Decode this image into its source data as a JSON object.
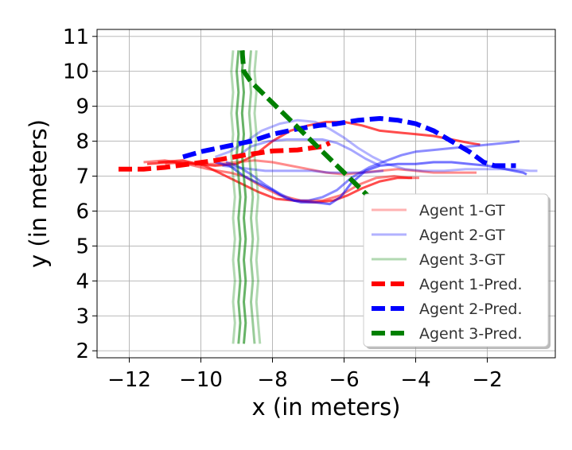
{
  "chart_data": {
    "type": "line",
    "title": "",
    "xlabel": "x (in meters)",
    "ylabel": "y (in meters)",
    "xlim": [
      -12.9,
      -0.1
    ],
    "ylim": [
      1.8,
      11.2
    ],
    "xticks": [
      -12,
      -10,
      -8,
      -6,
      -4,
      -2
    ],
    "xtick_labels": [
      "−12",
      "−10",
      "−8",
      "−6",
      "−4",
      "−2"
    ],
    "yticks": [
      2,
      3,
      4,
      5,
      6,
      7,
      8,
      9,
      10,
      11
    ],
    "ytick_labels": [
      "2",
      "3",
      "4",
      "5",
      "6",
      "7",
      "8",
      "9",
      "10",
      "11"
    ],
    "grid": true,
    "legend_position": "lower-right",
    "colors": {
      "agent1": "#ff0000",
      "agent2": "#0000ff",
      "agent3": "#008000"
    },
    "legend": [
      {
        "label": "Agent 1-GT",
        "color": "#ff0000",
        "style": "solid",
        "opacity": 0.3
      },
      {
        "label": "Agent 2-GT",
        "color": "#0000ff",
        "style": "solid",
        "opacity": 0.3
      },
      {
        "label": "Agent 3-GT",
        "color": "#008000",
        "style": "solid",
        "opacity": 0.3
      },
      {
        "label": "Agent 1-Pred.",
        "color": "#ff0000",
        "style": "dashed",
        "opacity": 1
      },
      {
        "label": "Agent 2-Pred.",
        "color": "#0000ff",
        "style": "dashed",
        "opacity": 1
      },
      {
        "label": "Agent 3-Pred.",
        "color": "#008000",
        "style": "dashed",
        "opacity": 1
      }
    ],
    "series": [
      {
        "group": "agent1",
        "kind": "gt",
        "opacity": 0.5,
        "points": [
          [
            -11.6,
            7.4
          ],
          [
            -11.0,
            7.45
          ],
          [
            -10.4,
            7.35
          ],
          [
            -9.8,
            7.2
          ],
          [
            -9.2,
            7.1
          ],
          [
            -8.8,
            7.0
          ],
          [
            -8.3,
            6.7
          ],
          [
            -7.8,
            6.45
          ],
          [
            -7.2,
            6.3
          ],
          [
            -6.6,
            6.3
          ],
          [
            -6.1,
            6.45
          ],
          [
            -5.6,
            6.75
          ],
          [
            -5.1,
            6.95
          ],
          [
            -4.6,
            7.0
          ],
          [
            -4.2,
            6.95
          ],
          [
            -3.9,
            6.95
          ]
        ]
      },
      {
        "group": "agent1",
        "kind": "gt",
        "opacity": 0.7,
        "points": [
          [
            -11.2,
            7.4
          ],
          [
            -10.5,
            7.45
          ],
          [
            -9.9,
            7.3
          ],
          [
            -9.4,
            7.05
          ],
          [
            -8.9,
            6.8
          ],
          [
            -8.4,
            6.55
          ],
          [
            -7.9,
            6.35
          ],
          [
            -7.4,
            6.3
          ],
          [
            -6.8,
            6.25
          ],
          [
            -6.3,
            6.3
          ],
          [
            -5.9,
            6.45
          ],
          [
            -5.5,
            6.65
          ],
          [
            -5.0,
            6.85
          ],
          [
            -4.5,
            6.95
          ],
          [
            -4.1,
            6.95
          ]
        ]
      },
      {
        "group": "agent1",
        "kind": "gt",
        "opacity": 0.7,
        "points": [
          [
            -11.5,
            7.35
          ],
          [
            -10.8,
            7.4
          ],
          [
            -10.2,
            7.35
          ],
          [
            -9.6,
            7.3
          ],
          [
            -9.0,
            7.35
          ],
          [
            -8.5,
            7.6
          ],
          [
            -8.0,
            8.0
          ],
          [
            -7.5,
            8.3
          ],
          [
            -7.0,
            8.45
          ],
          [
            -6.5,
            8.55
          ],
          [
            -6.0,
            8.55
          ],
          [
            -5.5,
            8.45
          ],
          [
            -5.0,
            8.3
          ],
          [
            -4.5,
            8.25
          ],
          [
            -4.0,
            8.2
          ],
          [
            -3.5,
            8.15
          ],
          [
            -3.0,
            8.05
          ],
          [
            -2.5,
            7.95
          ],
          [
            -2.2,
            7.9
          ]
        ]
      },
      {
        "group": "agent1",
        "kind": "gt",
        "opacity": 0.45,
        "points": [
          [
            -11.0,
            7.35
          ],
          [
            -10.5,
            7.4
          ],
          [
            -10.0,
            7.35
          ],
          [
            -9.5,
            7.35
          ],
          [
            -9.0,
            7.4
          ],
          [
            -8.5,
            7.45
          ],
          [
            -8.0,
            7.4
          ],
          [
            -7.5,
            7.3
          ],
          [
            -7.0,
            7.2
          ],
          [
            -6.5,
            7.1
          ],
          [
            -6.0,
            7.05
          ],
          [
            -5.5,
            7.1
          ],
          [
            -5.0,
            7.15
          ],
          [
            -4.5,
            7.2
          ],
          [
            -4.0,
            7.15
          ],
          [
            -3.5,
            7.1
          ],
          [
            -3.0,
            7.1
          ],
          [
            -2.5,
            7.1
          ],
          [
            -2.3,
            7.1
          ]
        ]
      },
      {
        "group": "agent1",
        "kind": "pred",
        "points": [
          [
            -12.3,
            7.2
          ],
          [
            -11.6,
            7.2
          ],
          [
            -11.0,
            7.25
          ],
          [
            -10.3,
            7.35
          ],
          [
            -9.6,
            7.45
          ],
          [
            -8.8,
            7.6
          ],
          [
            -8.0,
            7.72
          ],
          [
            -7.3,
            7.75
          ],
          [
            -6.6,
            7.85
          ],
          [
            -6.4,
            7.95
          ]
        ]
      },
      {
        "group": "agent2",
        "kind": "gt",
        "opacity": 0.55,
        "points": [
          [
            -9.6,
            7.4
          ],
          [
            -9.2,
            7.3
          ],
          [
            -8.8,
            7.0
          ],
          [
            -8.4,
            6.8
          ],
          [
            -8.0,
            6.6
          ],
          [
            -7.6,
            6.35
          ],
          [
            -7.2,
            6.25
          ],
          [
            -6.8,
            6.25
          ],
          [
            -6.4,
            6.2
          ],
          [
            -6.1,
            6.4
          ],
          [
            -5.8,
            6.8
          ],
          [
            -5.4,
            7.15
          ],
          [
            -5.0,
            7.3
          ],
          [
            -4.5,
            7.35
          ],
          [
            -4.0,
            7.35
          ],
          [
            -3.5,
            7.4
          ],
          [
            -3.0,
            7.4
          ],
          [
            -2.5,
            7.35
          ],
          [
            -2.0,
            7.3
          ],
          [
            -1.5,
            7.2
          ],
          [
            -1.0,
            7.1
          ],
          [
            -0.9,
            7.05
          ]
        ]
      },
      {
        "group": "agent2",
        "kind": "gt",
        "opacity": 0.3,
        "points": [
          [
            -9.6,
            7.55
          ],
          [
            -9.2,
            7.7
          ],
          [
            -8.8,
            7.95
          ],
          [
            -8.3,
            8.3
          ],
          [
            -7.8,
            8.5
          ],
          [
            -7.3,
            8.6
          ],
          [
            -6.8,
            8.55
          ],
          [
            -6.4,
            8.35
          ],
          [
            -6.0,
            8.1
          ],
          [
            -5.6,
            7.8
          ],
          [
            -5.2,
            7.55
          ],
          [
            -4.8,
            7.35
          ],
          [
            -4.3,
            7.2
          ],
          [
            -3.8,
            7.15
          ],
          [
            -3.2,
            7.15
          ],
          [
            -2.6,
            7.2
          ],
          [
            -2.0,
            7.2
          ],
          [
            -1.4,
            7.2
          ],
          [
            -0.8,
            7.15
          ],
          [
            -0.6,
            7.15
          ]
        ]
      },
      {
        "group": "agent2",
        "kind": "gt",
        "opacity": 0.35,
        "points": [
          [
            -9.4,
            7.3
          ],
          [
            -9.0,
            7.25
          ],
          [
            -8.6,
            7.2
          ],
          [
            -8.2,
            7.15
          ],
          [
            -7.8,
            7.15
          ],
          [
            -7.4,
            7.15
          ],
          [
            -6.9,
            7.15
          ],
          [
            -6.4,
            7.1
          ],
          [
            -5.9,
            7.1
          ],
          [
            -5.4,
            7.1
          ],
          [
            -4.9,
            7.15
          ]
        ]
      },
      {
        "group": "agent2",
        "kind": "gt",
        "opacity": 0.45,
        "points": [
          [
            -9.3,
            7.4
          ],
          [
            -9.0,
            7.3
          ],
          [
            -8.6,
            7.05
          ],
          [
            -8.2,
            6.75
          ],
          [
            -7.8,
            6.5
          ],
          [
            -7.4,
            6.3
          ],
          [
            -7.0,
            6.3
          ],
          [
            -6.6,
            6.4
          ],
          [
            -6.2,
            6.6
          ],
          [
            -5.8,
            6.95
          ],
          [
            -5.3,
            7.25
          ],
          [
            -4.8,
            7.45
          ],
          [
            -4.4,
            7.6
          ],
          [
            -4.0,
            7.7
          ],
          [
            -3.5,
            7.75
          ],
          [
            -3.0,
            7.8
          ],
          [
            -2.5,
            7.85
          ],
          [
            -2.0,
            7.9
          ],
          [
            -1.5,
            7.95
          ],
          [
            -1.1,
            8.0
          ]
        ]
      },
      {
        "group": "agent2",
        "kind": "gt",
        "opacity": 0.35,
        "points": [
          [
            -9.0,
            7.55
          ],
          [
            -8.6,
            7.85
          ],
          [
            -8.1,
            8.0
          ],
          [
            -7.6,
            8.05
          ],
          [
            -7.1,
            8.05
          ],
          [
            -6.6,
            8.05
          ],
          [
            -6.2,
            7.95
          ],
          [
            -5.8,
            7.75
          ],
          [
            -5.4,
            7.5
          ],
          [
            -5.0,
            7.3
          ]
        ]
      },
      {
        "group": "agent2",
        "kind": "pred",
        "points": [
          [
            -10.5,
            7.55
          ],
          [
            -10.0,
            7.7
          ],
          [
            -9.3,
            7.85
          ],
          [
            -8.6,
            8.0
          ],
          [
            -8.0,
            8.2
          ],
          [
            -7.3,
            8.35
          ],
          [
            -6.7,
            8.45
          ],
          [
            -6.2,
            8.5
          ],
          [
            -5.6,
            8.6
          ],
          [
            -5.0,
            8.65
          ],
          [
            -4.5,
            8.6
          ],
          [
            -4.0,
            8.5
          ],
          [
            -3.5,
            8.3
          ],
          [
            -3.0,
            8.0
          ],
          [
            -2.5,
            7.7
          ],
          [
            -2.1,
            7.4
          ],
          [
            -1.8,
            7.3
          ],
          [
            -1.2,
            7.3
          ]
        ]
      },
      {
        "group": "agent3",
        "kind": "gt",
        "opacity": 0.3,
        "points": [
          [
            -9.1,
            10.6
          ],
          [
            -9.15,
            10.0
          ],
          [
            -9.1,
            9.4
          ],
          [
            -9.15,
            8.8
          ],
          [
            -9.1,
            8.2
          ],
          [
            -9.15,
            7.6
          ],
          [
            -9.1,
            7.0
          ],
          [
            -9.05,
            6.4
          ],
          [
            -9.1,
            5.8
          ],
          [
            -9.05,
            5.2
          ],
          [
            -9.1,
            4.6
          ],
          [
            -9.05,
            4.0
          ],
          [
            -9.1,
            3.4
          ],
          [
            -9.05,
            2.8
          ],
          [
            -9.1,
            2.2
          ]
        ]
      },
      {
        "group": "agent3",
        "kind": "gt",
        "opacity": 0.55,
        "points": [
          [
            -8.95,
            10.6
          ],
          [
            -9.0,
            10.0
          ],
          [
            -8.95,
            9.4
          ],
          [
            -9.0,
            8.8
          ],
          [
            -8.95,
            8.2
          ],
          [
            -9.0,
            7.6
          ],
          [
            -8.95,
            7.0
          ],
          [
            -8.9,
            6.4
          ],
          [
            -8.95,
            5.8
          ],
          [
            -8.9,
            5.2
          ],
          [
            -8.95,
            4.6
          ],
          [
            -8.9,
            4.0
          ],
          [
            -8.95,
            3.4
          ],
          [
            -8.9,
            2.8
          ],
          [
            -8.95,
            2.2
          ]
        ]
      },
      {
        "group": "agent3",
        "kind": "gt",
        "opacity": 0.6,
        "points": [
          [
            -8.8,
            10.6
          ],
          [
            -8.85,
            10.0
          ],
          [
            -8.8,
            9.4
          ],
          [
            -8.85,
            8.8
          ],
          [
            -8.8,
            8.2
          ],
          [
            -8.85,
            7.6
          ],
          [
            -8.8,
            7.0
          ],
          [
            -8.75,
            6.4
          ],
          [
            -8.8,
            5.8
          ],
          [
            -8.75,
            5.2
          ],
          [
            -8.8,
            4.6
          ],
          [
            -8.75,
            4.0
          ],
          [
            -8.8,
            3.4
          ],
          [
            -8.75,
            2.8
          ],
          [
            -8.8,
            2.2
          ]
        ]
      },
      {
        "group": "agent3",
        "kind": "gt",
        "opacity": 0.4,
        "points": [
          [
            -8.6,
            10.6
          ],
          [
            -8.65,
            10.0
          ],
          [
            -8.6,
            9.4
          ],
          [
            -8.65,
            8.8
          ],
          [
            -8.6,
            8.2
          ],
          [
            -8.65,
            7.6
          ],
          [
            -8.6,
            7.0
          ],
          [
            -8.55,
            6.4
          ],
          [
            -8.6,
            5.8
          ],
          [
            -8.55,
            5.2
          ],
          [
            -8.6,
            4.6
          ],
          [
            -8.55,
            4.0
          ],
          [
            -8.6,
            3.4
          ],
          [
            -8.55,
            2.8
          ],
          [
            -8.5,
            2.2
          ]
        ]
      },
      {
        "group": "agent3",
        "kind": "gt",
        "opacity": 0.3,
        "points": [
          [
            -8.45,
            10.6
          ],
          [
            -8.5,
            10.0
          ],
          [
            -8.45,
            9.4
          ],
          [
            -8.5,
            8.8
          ],
          [
            -8.45,
            8.2
          ],
          [
            -8.5,
            7.6
          ],
          [
            -8.45,
            7.0
          ],
          [
            -8.4,
            6.4
          ],
          [
            -8.45,
            5.8
          ],
          [
            -8.4,
            5.2
          ],
          [
            -8.45,
            4.6
          ],
          [
            -8.4,
            4.0
          ],
          [
            -8.45,
            3.4
          ],
          [
            -8.4,
            2.8
          ],
          [
            -8.35,
            2.2
          ]
        ]
      },
      {
        "group": "agent3",
        "kind": "pred",
        "points": [
          [
            -8.85,
            10.6
          ],
          [
            -8.8,
            10.0
          ],
          [
            -8.6,
            9.7
          ],
          [
            -8.3,
            9.4
          ],
          [
            -8.0,
            9.1
          ],
          [
            -7.7,
            8.8
          ],
          [
            -7.4,
            8.5
          ],
          [
            -7.1,
            8.2
          ],
          [
            -6.8,
            7.9
          ],
          [
            -6.5,
            7.6
          ],
          [
            -6.2,
            7.3
          ],
          [
            -5.9,
            7.0
          ],
          [
            -5.6,
            6.7
          ],
          [
            -5.35,
            6.45
          ]
        ]
      }
    ]
  }
}
